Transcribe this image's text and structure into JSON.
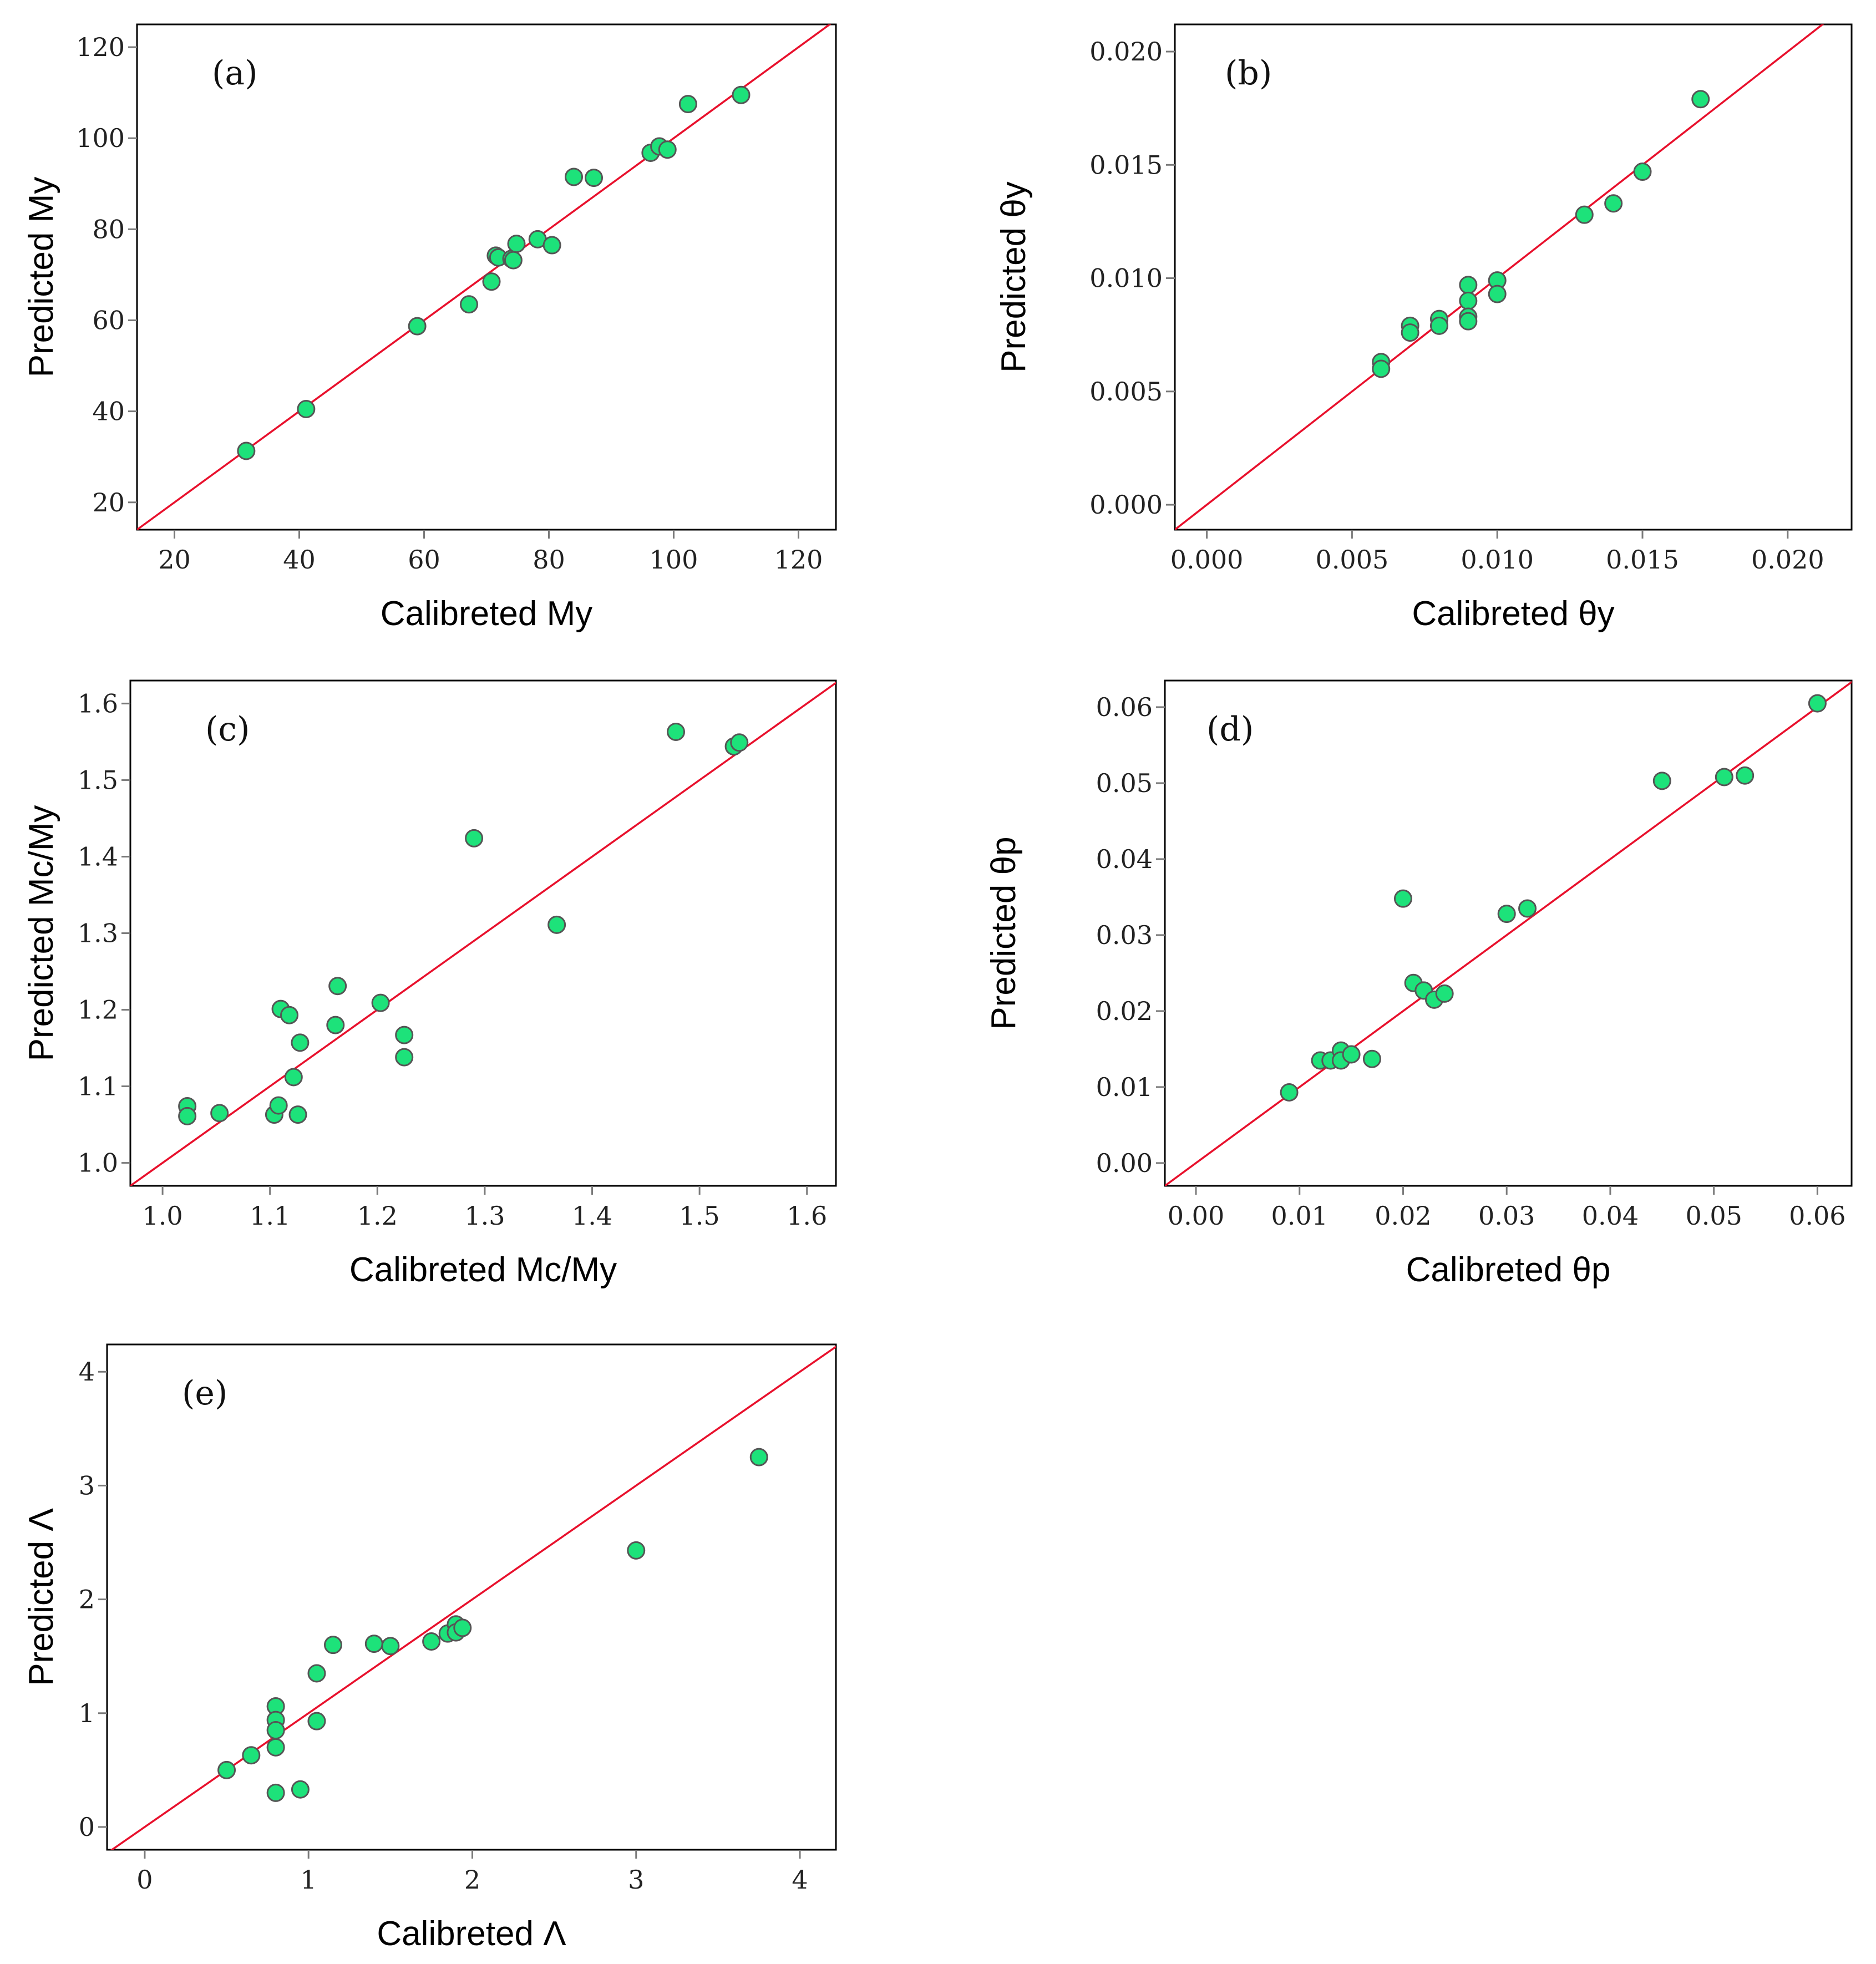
{
  "colors": {
    "point": "#1de27a",
    "point_edge": "#555555",
    "line": "#e8102c"
  },
  "chart_data": [
    {
      "id": "a",
      "type": "scatter",
      "label": "(a)",
      "xlabel": "Calibreted My",
      "ylabel": "Predicted My",
      "xlim": [
        14,
        126
      ],
      "ylim": [
        14,
        125
      ],
      "xticks": [
        20,
        40,
        60,
        80,
        100,
        120
      ],
      "xticklabels": [
        "20",
        "40",
        "60",
        "80",
        "100",
        "120"
      ],
      "yticks": [
        20,
        40,
        60,
        80,
        100,
        120
      ],
      "yticklabels": [
        "20",
        "40",
        "60",
        "80",
        "100",
        "120"
      ],
      "reference_line": "y = x",
      "points": [
        [
          31.5,
          31.3
        ],
        [
          41.1,
          40.5
        ],
        [
          58.9,
          58.7
        ],
        [
          67.2,
          63.5
        ],
        [
          70.8,
          68.5
        ],
        [
          71.5,
          74.2
        ],
        [
          71.9,
          73.8
        ],
        [
          74,
          73.5
        ],
        [
          74.3,
          73.2
        ],
        [
          74.8,
          76.8
        ],
        [
          78.2,
          77.8
        ],
        [
          80.5,
          76.5
        ],
        [
          84,
          91.5
        ],
        [
          87.2,
          91.3
        ],
        [
          96.3,
          96.8
        ],
        [
          97.7,
          98.2
        ],
        [
          99,
          97.5
        ],
        [
          102.3,
          107.5
        ],
        [
          110.8,
          109.5
        ]
      ]
    },
    {
      "id": "b",
      "type": "scatter",
      "label": "(b)",
      "xlabel": "Calibreted θy",
      "ylabel": "Predicted θy",
      "xlim": [
        -0.0011,
        0.0222
      ],
      "ylim": [
        -0.0011,
        0.0212
      ],
      "xticks": [
        0,
        0.005,
        0.01,
        0.015,
        0.02
      ],
      "xticklabels": [
        "0.000",
        "0.005",
        "0.010",
        "0.015",
        "0.020"
      ],
      "yticks": [
        0,
        0.005,
        0.01,
        0.015,
        0.02
      ],
      "yticklabels": [
        "0.000",
        "0.005",
        "0.010",
        "0.015",
        "0.020"
      ],
      "reference_line": "y = x",
      "points": [
        [
          0.006,
          0.0063
        ],
        [
          0.006,
          0.006
        ],
        [
          0.007,
          0.0079
        ],
        [
          0.007,
          0.0076
        ],
        [
          0.008,
          0.0082
        ],
        [
          0.008,
          0.0079
        ],
        [
          0.009,
          0.0097
        ],
        [
          0.009,
          0.009
        ],
        [
          0.009,
          0.0083
        ],
        [
          0.009,
          0.0081
        ],
        [
          0.01,
          0.0099
        ],
        [
          0.01,
          0.0093
        ],
        [
          0.013,
          0.0128
        ],
        [
          0.014,
          0.0133
        ],
        [
          0.015,
          0.0147
        ],
        [
          0.017,
          0.0179
        ]
      ]
    },
    {
      "id": "c",
      "type": "scatter",
      "label": "(c)",
      "xlabel": "Calibreted Mc/My",
      "ylabel": "Predicted Mc/My",
      "xlim": [
        0.97,
        1.627
      ],
      "ylim": [
        0.97,
        1.63
      ],
      "xticks": [
        1.0,
        1.1,
        1.2,
        1.3,
        1.4,
        1.5,
        1.6
      ],
      "xticklabels": [
        "1.0",
        "1.1",
        "1.2",
        "1.3",
        "1.4",
        "1.5",
        "1.6"
      ],
      "yticks": [
        1.0,
        1.1,
        1.2,
        1.3,
        1.4,
        1.5,
        1.6
      ],
      "yticklabels": [
        "1.0",
        "1.1",
        "1.2",
        "1.3",
        "1.4",
        "1.5",
        "1.6"
      ],
      "reference_line": "y = x",
      "points": [
        [
          1.023,
          1.074
        ],
        [
          1.023,
          1.061
        ],
        [
          1.053,
          1.065
        ],
        [
          1.104,
          1.063
        ],
        [
          1.108,
          1.075
        ],
        [
          1.11,
          1.201
        ],
        [
          1.118,
          1.193
        ],
        [
          1.122,
          1.112
        ],
        [
          1.126,
          1.063
        ],
        [
          1.128,
          1.157
        ],
        [
          1.161,
          1.18
        ],
        [
          1.163,
          1.231
        ],
        [
          1.203,
          1.209
        ],
        [
          1.225,
          1.167
        ],
        [
          1.225,
          1.138
        ],
        [
          1.29,
          1.424
        ],
        [
          1.367,
          1.311
        ],
        [
          1.478,
          1.563
        ],
        [
          1.532,
          1.544
        ],
        [
          1.537,
          1.549
        ]
      ]
    },
    {
      "id": "d",
      "type": "scatter",
      "label": "(d)",
      "xlabel": "Calibreted θp",
      "ylabel": "Predicted θp",
      "xlim": [
        -0.003,
        0.0633
      ],
      "ylim": [
        -0.003,
        0.0635
      ],
      "xticks": [
        0,
        0.01,
        0.02,
        0.03,
        0.04,
        0.05,
        0.06
      ],
      "xticklabels": [
        "0.00",
        "0.01",
        "0.02",
        "0.03",
        "0.04",
        "0.05",
        "0.06"
      ],
      "yticks": [
        0,
        0.01,
        0.02,
        0.03,
        0.04,
        0.05,
        0.06
      ],
      "yticklabels": [
        "0.00",
        "0.01",
        "0.02",
        "0.03",
        "0.04",
        "0.05",
        "0.06"
      ],
      "reference_line": "y = x",
      "points": [
        [
          0.009,
          0.0093
        ],
        [
          0.012,
          0.0135
        ],
        [
          0.013,
          0.0135
        ],
        [
          0.014,
          0.0148
        ],
        [
          0.014,
          0.0135
        ],
        [
          0.015,
          0.0143
        ],
        [
          0.017,
          0.0137
        ],
        [
          0.02,
          0.0348
        ],
        [
          0.021,
          0.0237
        ],
        [
          0.022,
          0.0227
        ],
        [
          0.023,
          0.0215
        ],
        [
          0.024,
          0.0223
        ],
        [
          0.03,
          0.0328
        ],
        [
          0.032,
          0.0335
        ],
        [
          0.045,
          0.0503
        ],
        [
          0.051,
          0.0508
        ],
        [
          0.053,
          0.051
        ],
        [
          0.06,
          0.0605
        ]
      ]
    },
    {
      "id": "e",
      "type": "scatter",
      "label": "(e)",
      "xlabel": "Calibreted Λ",
      "ylabel": "Predicted Λ",
      "xlim": [
        -0.23,
        4.22
      ],
      "ylim": [
        -0.2,
        4.24
      ],
      "xticks": [
        0,
        1,
        2,
        3,
        4
      ],
      "xticklabels": [
        "0",
        "1",
        "2",
        "3",
        "4"
      ],
      "yticks": [
        0,
        1,
        2,
        3,
        4
      ],
      "yticklabels": [
        "0",
        "1",
        "2",
        "3",
        "4"
      ],
      "reference_line": "y = x",
      "points": [
        [
          0.5,
          0.5
        ],
        [
          0.65,
          0.63
        ],
        [
          0.8,
          1.06
        ],
        [
          0.8,
          0.94
        ],
        [
          0.8,
          0.85
        ],
        [
          0.8,
          0.7
        ],
        [
          0.8,
          0.3
        ],
        [
          0.95,
          0.33
        ],
        [
          1.05,
          1.35
        ],
        [
          1.05,
          0.93
        ],
        [
          1.15,
          1.6
        ],
        [
          1.4,
          1.61
        ],
        [
          1.5,
          1.59
        ],
        [
          1.75,
          1.63
        ],
        [
          1.85,
          1.7
        ],
        [
          1.9,
          1.78
        ],
        [
          1.9,
          1.71
        ],
        [
          1.94,
          1.75
        ],
        [
          3.0,
          2.43
        ],
        [
          3.75,
          3.25
        ]
      ]
    }
  ]
}
